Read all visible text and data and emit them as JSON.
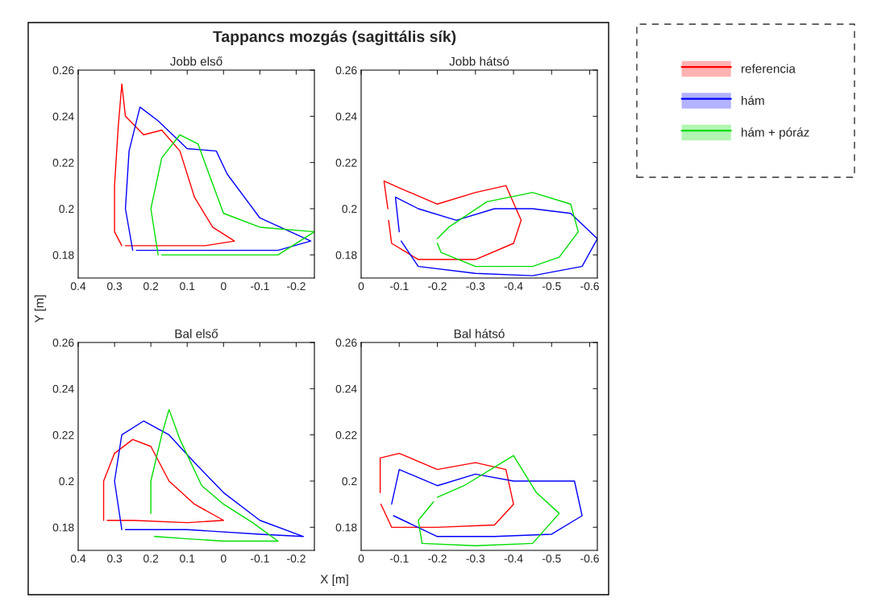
{
  "chart_data": [
    {
      "type": "line",
      "title": "Jobb első",
      "ylabel": "Y [m]",
      "annotations": [
        "Tappancs mozgás (sagittális sík)"
      ],
      "xlim": [
        0.4,
        -0.25
      ],
      "ylim": [
        0.17,
        0.26
      ],
      "xticks": [
        0.4,
        0.3,
        0.2,
        0.1,
        0,
        -0.1,
        -0.2
      ],
      "yticks": [
        0.18,
        0.2,
        0.22,
        0.24,
        0.26
      ],
      "series": [
        {
          "color": "#ff0000",
          "x": [
            0.28,
            0.3,
            0.3,
            0.29,
            0.28,
            0.27,
            0.22,
            0.17,
            0.12,
            0.08,
            0.03,
            -0.03,
            0.05,
            0.15,
            0.27
          ],
          "values": [
            0.184,
            0.19,
            0.21,
            0.235,
            0.254,
            0.24,
            0.232,
            0.234,
            0.225,
            0.205,
            0.192,
            0.186,
            0.184,
            0.184,
            0.184
          ]
        },
        {
          "color": "#0000ff",
          "x": [
            0.25,
            0.27,
            0.26,
            0.23,
            0.18,
            0.1,
            0.02,
            -0.01,
            -0.1,
            -0.24,
            -0.15,
            0.0,
            0.15,
            0.24
          ],
          "values": [
            0.182,
            0.2,
            0.225,
            0.244,
            0.238,
            0.226,
            0.225,
            0.215,
            0.196,
            0.186,
            0.182,
            0.182,
            0.182,
            0.182
          ]
        },
        {
          "color": "#00dd00",
          "x": [
            0.18,
            0.2,
            0.17,
            0.12,
            0.07,
            0.04,
            0,
            -0.1,
            -0.25,
            -0.15,
            0,
            0.1,
            0.17
          ],
          "values": [
            0.18,
            0.2,
            0.222,
            0.232,
            0.228,
            0.215,
            0.198,
            0.192,
            0.19,
            0.18,
            0.18,
            0.18,
            0.18
          ]
        }
      ]
    },
    {
      "type": "line",
      "title": "Jobb hátsó",
      "legend": "right",
      "xlim": [
        0,
        -0.62
      ],
      "ylim": [
        0.17,
        0.26
      ],
      "xticks": [
        0,
        -0.1,
        -0.2,
        -0.3,
        -0.4,
        -0.5,
        -0.6
      ],
      "yticks": [
        0.18,
        0.2,
        0.22,
        0.24,
        0.26
      ],
      "series": [
        {
          "name": "referencia",
          "color": "#ff0000",
          "x": [
            -0.07,
            -0.06,
            -0.1,
            -0.2,
            -0.3,
            -0.38,
            -0.42,
            -0.4,
            -0.3,
            -0.15,
            -0.08,
            -0.072
          ],
          "values": [
            0.2,
            0.212,
            0.209,
            0.202,
            0.207,
            0.21,
            0.195,
            0.185,
            0.178,
            0.178,
            0.185,
            0.195
          ]
        },
        {
          "name": "hám",
          "color": "#0000ff",
          "x": [
            -0.1,
            -0.09,
            -0.15,
            -0.25,
            -0.35,
            -0.45,
            -0.55,
            -0.62,
            -0.58,
            -0.45,
            -0.3,
            -0.15,
            -0.105
          ],
          "values": [
            0.19,
            0.205,
            0.2,
            0.195,
            0.2,
            0.2,
            0.198,
            0.187,
            0.175,
            0.171,
            0.172,
            0.175,
            0.186
          ]
        },
        {
          "name": "hám + póráz",
          "color": "#00dd00",
          "x": [
            -0.2,
            -0.23,
            -0.33,
            -0.45,
            -0.55,
            -0.57,
            -0.52,
            -0.45,
            -0.3,
            -0.21,
            -0.2
          ],
          "values": [
            0.187,
            0.192,
            0.203,
            0.207,
            0.202,
            0.19,
            0.179,
            0.175,
            0.175,
            0.181,
            0.185
          ]
        }
      ]
    },
    {
      "type": "line",
      "title": "Bal első",
      "xlim": [
        0.4,
        -0.25
      ],
      "ylim": [
        0.17,
        0.26
      ],
      "xticks": [
        0.4,
        0.3,
        0.2,
        0.1,
        0,
        -0.1,
        -0.2
      ],
      "yticks": [
        0.18,
        0.2,
        0.22,
        0.24,
        0.26
      ],
      "series": [
        {
          "color": "#ff0000",
          "x": [
            0.33,
            0.33,
            0.3,
            0.25,
            0.2,
            0.15,
            0.08,
            0.0,
            0.1,
            0.25,
            0.32
          ],
          "values": [
            0.183,
            0.2,
            0.212,
            0.218,
            0.215,
            0.2,
            0.19,
            0.183,
            0.182,
            0.183,
            0.183
          ]
        },
        {
          "color": "#0000ff",
          "x": [
            0.28,
            0.3,
            0.28,
            0.22,
            0.15,
            0.08,
            0,
            -0.1,
            -0.22,
            -0.1,
            0.1,
            0.27
          ],
          "values": [
            0.179,
            0.2,
            0.22,
            0.226,
            0.22,
            0.208,
            0.195,
            0.183,
            0.176,
            0.177,
            0.179,
            0.179
          ]
        },
        {
          "color": "#00dd00",
          "x": [
            0.2,
            0.2,
            0.17,
            0.15,
            0.12,
            0.06,
            0.0,
            -0.08,
            -0.15,
            0.0,
            0.1,
            0.19
          ],
          "values": [
            0.186,
            0.2,
            0.22,
            0.231,
            0.218,
            0.198,
            0.19,
            0.182,
            0.174,
            0.174,
            0.175,
            0.176
          ]
        }
      ]
    },
    {
      "type": "line",
      "title": "Bal hátsó",
      "xlabel": "X [m]",
      "xlim": [
        0,
        -0.62
      ],
      "ylim": [
        0.17,
        0.26
      ],
      "xticks": [
        0,
        -0.1,
        -0.2,
        -0.3,
        -0.4,
        -0.5,
        -0.6
      ],
      "yticks": [
        0.18,
        0.2,
        0.22,
        0.24,
        0.26
      ],
      "series": [
        {
          "color": "#ff0000",
          "x": [
            -0.05,
            -0.05,
            -0.1,
            -0.2,
            -0.3,
            -0.38,
            -0.4,
            -0.35,
            -0.2,
            -0.08,
            -0.052
          ],
          "values": [
            0.195,
            0.21,
            0.212,
            0.205,
            0.208,
            0.205,
            0.19,
            0.181,
            0.18,
            0.18,
            0.19
          ]
        },
        {
          "color": "#0000ff",
          "x": [
            -0.08,
            -0.1,
            -0.2,
            -0.3,
            -0.4,
            -0.5,
            -0.56,
            -0.58,
            -0.5,
            -0.35,
            -0.2,
            -0.085
          ],
          "values": [
            0.19,
            0.205,
            0.198,
            0.203,
            0.2,
            0.2,
            0.2,
            0.185,
            0.177,
            0.176,
            0.176,
            0.185
          ]
        },
        {
          "color": "#00dd00",
          "x": [
            -0.2,
            -0.27,
            -0.4,
            -0.46,
            -0.52,
            -0.45,
            -0.3,
            -0.16,
            -0.15,
            -0.19
          ],
          "values": [
            0.193,
            0.198,
            0.211,
            0.195,
            0.186,
            0.173,
            0.172,
            0.173,
            0.183,
            0.191
          ]
        }
      ]
    }
  ]
}
